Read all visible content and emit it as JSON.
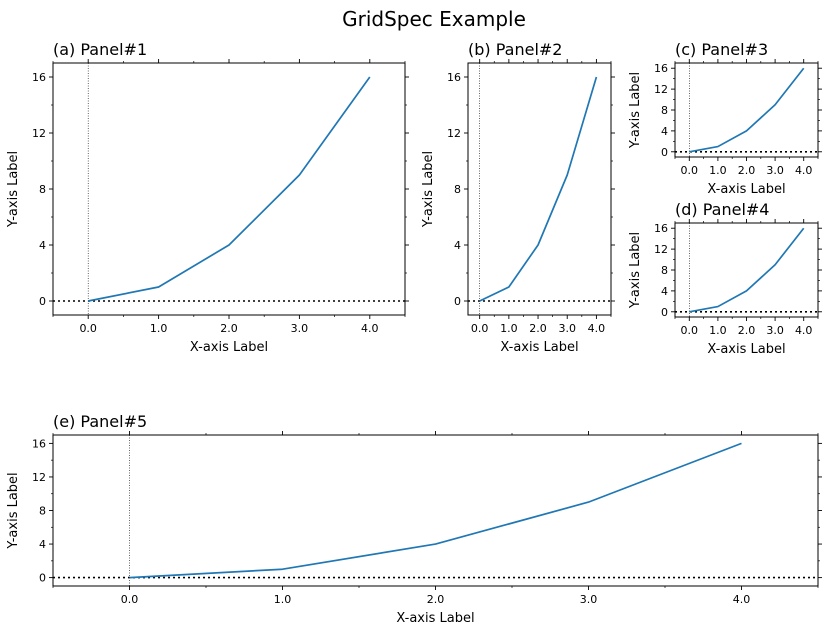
{
  "figure": {
    "suptitle": "GridSpec Example"
  },
  "chart_data": [
    {
      "type": "line",
      "title": "(a) Panel#1",
      "xlabel": "X-axis Label",
      "ylabel": "Y-axis Label",
      "xlim": [
        -0.5,
        4.5
      ],
      "ylim": [
        -1,
        17
      ],
      "xticks": [
        0,
        1,
        2,
        3,
        4
      ],
      "xticklabels": [
        "0.0",
        "1.0",
        "2.0",
        "3.0",
        "4.0"
      ],
      "yticks": [
        0,
        4,
        8,
        12,
        16
      ],
      "yticklabels": [
        "0",
        "4",
        "8",
        "12",
        "16"
      ],
      "series": [
        {
          "x": [
            0,
            1,
            2,
            3,
            4
          ],
          "y": [
            0,
            1,
            4,
            9,
            16
          ],
          "color": "#1f77b4"
        }
      ],
      "reference_lines": {
        "hline_y": 0,
        "vline_x": 0
      }
    },
    {
      "type": "line",
      "title": "(b) Panel#2",
      "xlabel": "X-axis Label",
      "ylabel": "Y-axis Label",
      "xlim": [
        -0.4,
        4.5
      ],
      "ylim": [
        -1,
        17
      ],
      "xticks": [
        0,
        1,
        2,
        3,
        4
      ],
      "xticklabels": [
        "0.0",
        "1.0",
        "2.0",
        "3.0",
        "4.0"
      ],
      "yticks": [
        0,
        4,
        8,
        12,
        16
      ],
      "yticklabels": [
        "0",
        "4",
        "8",
        "12",
        "16"
      ],
      "series": [
        {
          "x": [
            0,
            1,
            2,
            3,
            4
          ],
          "y": [
            0,
            1,
            4,
            9,
            16
          ],
          "color": "#1f77b4"
        }
      ],
      "reference_lines": {
        "hline_y": 0,
        "vline_x": 0
      }
    },
    {
      "type": "line",
      "title": "(c) Panel#3",
      "xlabel": "X-axis Label",
      "ylabel": "Y-axis Label",
      "xlim": [
        -0.5,
        4.5
      ],
      "ylim": [
        -1,
        17
      ],
      "xticks": [
        0,
        1,
        2,
        3,
        4
      ],
      "xticklabels": [
        "0.0",
        "1.0",
        "2.0",
        "3.0",
        "4.0"
      ],
      "yticks": [
        0,
        4,
        8,
        12,
        16
      ],
      "yticklabels": [
        "0",
        "4",
        "8",
        "12",
        "16"
      ],
      "series": [
        {
          "x": [
            0,
            1,
            2,
            3,
            4
          ],
          "y": [
            0,
            1,
            4,
            9,
            16
          ],
          "color": "#1f77b4"
        }
      ],
      "reference_lines": {
        "hline_y": 0,
        "vline_x": 0
      }
    },
    {
      "type": "line",
      "title": "(d) Panel#4",
      "xlabel": "X-axis Label",
      "ylabel": "Y-axis Label",
      "xlim": [
        -0.5,
        4.5
      ],
      "ylim": [
        -1,
        17
      ],
      "xticks": [
        0,
        1,
        2,
        3,
        4
      ],
      "xticklabels": [
        "0.0",
        "1.0",
        "2.0",
        "3.0",
        "4.0"
      ],
      "yticks": [
        0,
        4,
        8,
        12,
        16
      ],
      "yticklabels": [
        "0",
        "4",
        "8",
        "12",
        "16"
      ],
      "series": [
        {
          "x": [
            0,
            1,
            2,
            3,
            4
          ],
          "y": [
            0,
            1,
            4,
            9,
            16
          ],
          "color": "#1f77b4"
        }
      ],
      "reference_lines": {
        "hline_y": 0,
        "vline_x": 0
      }
    },
    {
      "type": "line",
      "title": "(e) Panel#5",
      "xlabel": "X-axis Label",
      "ylabel": "Y-axis Label",
      "xlim": [
        -0.5,
        4.5
      ],
      "ylim": [
        -1,
        17
      ],
      "xticks": [
        0,
        1,
        2,
        3,
        4
      ],
      "xticklabels": [
        "0.0",
        "1.0",
        "2.0",
        "3.0",
        "4.0"
      ],
      "yticks": [
        0,
        4,
        8,
        12,
        16
      ],
      "yticklabels": [
        "0",
        "4",
        "8",
        "12",
        "16"
      ],
      "series": [
        {
          "x": [
            0,
            1,
            2,
            3,
            4
          ],
          "y": [
            0,
            1,
            4,
            9,
            16
          ],
          "color": "#1f77b4"
        }
      ],
      "reference_lines": {
        "hline_y": 0,
        "vline_x": 0
      }
    }
  ]
}
